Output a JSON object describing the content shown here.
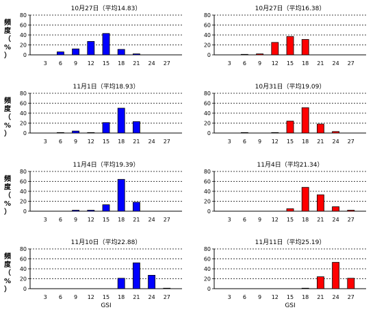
{
  "colors": {
    "blue": "#0000ff",
    "red": "#ff0000",
    "outline": "#000000"
  },
  "chart_data": [
    {
      "type": "bar",
      "title": "10月27日（平均14.83）",
      "ylabel": "頻度（%）",
      "xlabel": "",
      "color": "#0000ff",
      "ylim": [
        0,
        80
      ],
      "yticks": [
        0,
        20,
        40,
        60,
        80
      ],
      "x_ticks": [
        "3",
        "6",
        "9",
        "12",
        "15",
        "18",
        "21",
        "24",
        "27"
      ],
      "categories": [
        6,
        9,
        12,
        15,
        18,
        21
      ],
      "values": [
        6,
        12,
        27,
        43,
        11,
        2
      ]
    },
    {
      "type": "bar",
      "title": "10月27日（平均16.38）",
      "ylabel": "",
      "xlabel": "",
      "color": "#ff0000",
      "ylim": [
        0,
        80
      ],
      "yticks": [
        0,
        20,
        40,
        60,
        80
      ],
      "x_ticks": [
        "3",
        "6",
        "9",
        "12",
        "15",
        "18",
        "21",
        "24",
        "27"
      ],
      "categories": [
        6,
        9,
        12,
        15,
        18
      ],
      "values": [
        1,
        2,
        25,
        37,
        31
      ]
    },
    {
      "type": "bar",
      "title": "11月1日（平均18.93）",
      "ylabel": "頻度（%）",
      "xlabel": "",
      "color": "#0000ff",
      "ylim": [
        0,
        80
      ],
      "yticks": [
        0,
        20,
        40,
        60,
        80
      ],
      "x_ticks": [
        "3",
        "6",
        "9",
        "12",
        "15",
        "18",
        "21",
        "24",
        "27"
      ],
      "categories": [
        6,
        9,
        12,
        15,
        18,
        21
      ],
      "values": [
        1,
        4,
        1,
        21,
        50,
        23
      ]
    },
    {
      "type": "bar",
      "title": "10月31日（平均19.09）",
      "ylabel": "",
      "xlabel": "",
      "color": "#ff0000",
      "ylim": [
        0,
        80
      ],
      "yticks": [
        0,
        20,
        40,
        60,
        80
      ],
      "x_ticks": [
        "3",
        "6",
        "9",
        "12",
        "15",
        "18",
        "21",
        "24",
        "27"
      ],
      "categories": [
        6,
        12,
        15,
        18,
        21,
        24
      ],
      "values": [
        1,
        1,
        24,
        51,
        18,
        3
      ]
    },
    {
      "type": "bar",
      "title": "11月4日（平均19.39）",
      "ylabel": "頻度（%）",
      "xlabel": "",
      "color": "#0000ff",
      "ylim": [
        0,
        80
      ],
      "yticks": [
        0,
        20,
        40,
        60,
        80
      ],
      "x_ticks": [
        "3",
        "6",
        "9",
        "12",
        "15",
        "18",
        "21",
        "24",
        "27"
      ],
      "categories": [
        9,
        12,
        15,
        18,
        21
      ],
      "values": [
        2,
        2,
        13,
        64,
        18
      ]
    },
    {
      "type": "bar",
      "title": "11月4日（平均21.34）",
      "ylabel": "",
      "xlabel": "",
      "color": "#ff0000",
      "ylim": [
        0,
        80
      ],
      "yticks": [
        0,
        20,
        40,
        60,
        80
      ],
      "x_ticks": [
        "3",
        "6",
        "9",
        "12",
        "15",
        "18",
        "21",
        "24",
        "27"
      ],
      "categories": [
        15,
        18,
        21,
        24,
        27
      ],
      "values": [
        5,
        48,
        33,
        9,
        2
      ]
    },
    {
      "type": "bar",
      "title": "11月10日（平均22.88）",
      "ylabel": "頻度（%）",
      "xlabel": "GSI",
      "color": "#0000ff",
      "ylim": [
        0,
        80
      ],
      "yticks": [
        0,
        20,
        40,
        60,
        80
      ],
      "x_ticks": [
        "3",
        "6",
        "9",
        "12",
        "15",
        "18",
        "21",
        "24",
        "27"
      ],
      "categories": [
        18,
        21,
        24,
        27
      ],
      "values": [
        21,
        52,
        27,
        1
      ]
    },
    {
      "type": "bar",
      "title": "11月11日（平均25.19）",
      "ylabel": "",
      "xlabel": "GSI",
      "color": "#ff0000",
      "ylim": [
        0,
        80
      ],
      "yticks": [
        0,
        20,
        40,
        60,
        80
      ],
      "x_ticks": [
        "3",
        "6",
        "9",
        "12",
        "15",
        "18",
        "21",
        "24",
        "27"
      ],
      "categories": [
        18,
        21,
        24,
        27
      ],
      "values": [
        1,
        24,
        53,
        21
      ]
    }
  ]
}
